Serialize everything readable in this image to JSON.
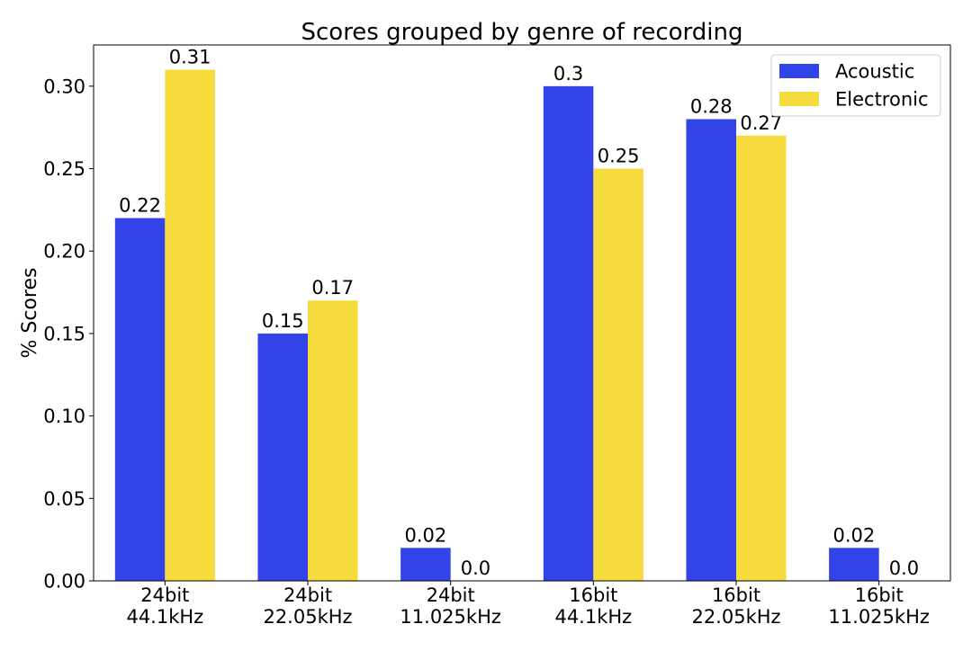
{
  "chart_data": {
    "type": "bar",
    "title": "Scores grouped by genre of recording",
    "xlabel": "",
    "ylabel": "% Scores",
    "categories": [
      [
        "24bit",
        "44.1kHz"
      ],
      [
        "24bit",
        "22.05kHz"
      ],
      [
        "24bit",
        "11.025kHz"
      ],
      [
        "16bit",
        "44.1kHz"
      ],
      [
        "16bit",
        "22.05kHz"
      ],
      [
        "16bit",
        "11.025kHz"
      ]
    ],
    "series": [
      {
        "name": "Acoustic",
        "color": "#3243e8",
        "values": [
          0.22,
          0.15,
          0.02,
          0.3,
          0.28,
          0.02
        ],
        "labels": [
          "0.22",
          "0.15",
          "0.02",
          "0.3",
          "0.28",
          "0.02"
        ]
      },
      {
        "name": "Electronic",
        "color": "#f5db3c",
        "values": [
          0.31,
          0.17,
          0.0,
          0.25,
          0.27,
          0.0
        ],
        "labels": [
          "0.31",
          "0.17",
          "0.0",
          "0.25",
          "0.27",
          "0.0"
        ]
      }
    ],
    "ylim": [
      0,
      0.325
    ],
    "yticks": [
      0.0,
      0.05,
      0.1,
      0.15,
      0.2,
      0.25,
      0.3
    ],
    "ytick_labels": [
      "0.00",
      "0.05",
      "0.10",
      "0.15",
      "0.20",
      "0.25",
      "0.30"
    ],
    "grid": false,
    "legend_position": "top-right"
  }
}
